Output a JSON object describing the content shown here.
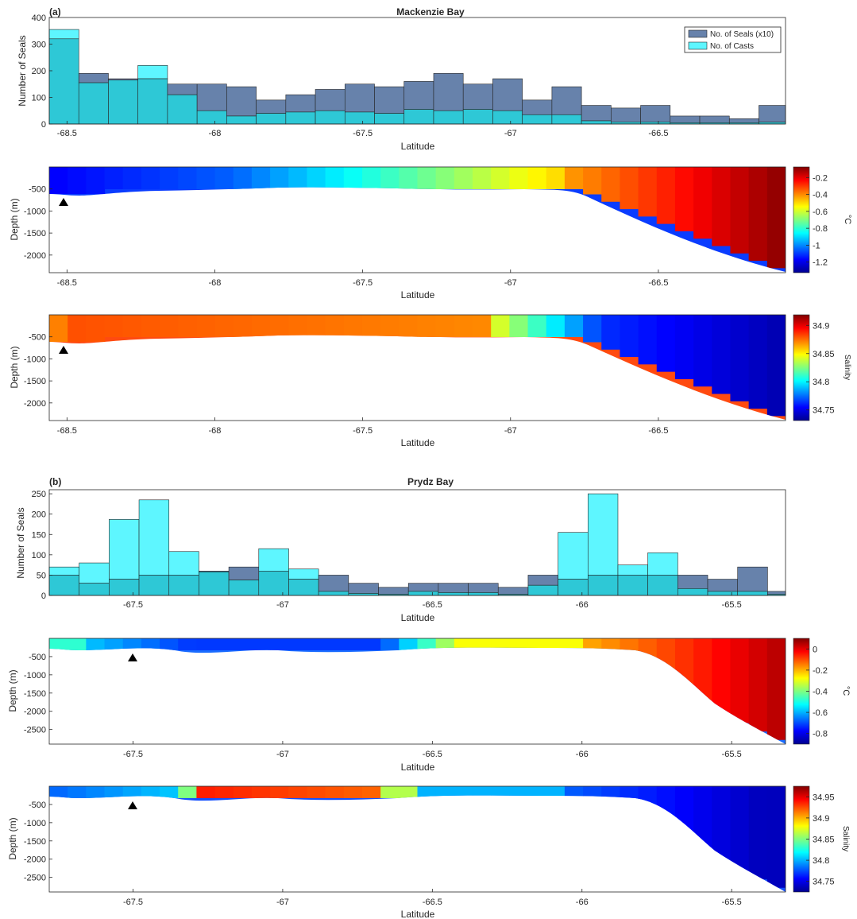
{
  "panels": [
    {
      "label": "(a)",
      "title": "Mackenzie Bay",
      "histogram": {
        "ylabel": "Number of Seals",
        "xlabel": "Latitude",
        "xlim": [
          -68.56,
          -66.07
        ],
        "ylim": [
          0,
          400
        ],
        "xticks": [
          -68.5,
          -68,
          -67.5,
          -67,
          -66.5
        ],
        "yticks": [
          0,
          100,
          200,
          300,
          400
        ],
        "legend": [
          "No. of Seals (x10)",
          "No. of Casts"
        ],
        "bin_edges": [
          -68.56,
          -68.46,
          -68.36,
          -68.26,
          -68.16,
          -68.06,
          -67.96,
          -67.86,
          -67.76,
          -67.66,
          -67.56,
          -67.46,
          -67.36,
          -67.26,
          -67.16,
          -67.06,
          -66.96,
          -66.86,
          -66.76,
          -66.66,
          -66.56,
          -66.46,
          -66.36,
          -66.26,
          -66.16,
          -66.07
        ],
        "seals_x10": [
          320,
          190,
          170,
          170,
          150,
          150,
          140,
          90,
          110,
          130,
          150,
          140,
          160,
          190,
          150,
          170,
          90,
          140,
          70,
          60,
          70,
          30,
          30,
          20,
          70
        ],
        "casts": [
          355,
          155,
          165,
          220,
          110,
          50,
          30,
          40,
          45,
          50,
          45,
          40,
          55,
          50,
          55,
          50,
          35,
          35,
          12,
          8,
          8,
          5,
          5,
          5,
          7
        ]
      },
      "temperature": {
        "ylabel": "Depth (m)",
        "xlabel": "Latitude",
        "cbar_label": "°C",
        "cbar_ticks": [
          "-0.2",
          "-0.4",
          "-0.6",
          "-0.8",
          "-1",
          "-1.2"
        ],
        "yticks": [
          -500,
          -1000,
          -1500,
          -2000
        ],
        "xticks": [
          -68.5,
          -68,
          -67.5,
          -67,
          -66.5
        ],
        "marker_lat": -68.5
      },
      "salinity": {
        "ylabel": "Depth (m)",
        "xlabel": "Latitude",
        "cbar_label": "Salinity",
        "cbar_ticks": [
          "34.9",
          "34.85",
          "34.8",
          "34.75"
        ],
        "yticks": [
          -500,
          -1000,
          -1500,
          -2000
        ],
        "xticks": [
          -68.5,
          -68,
          -67.5,
          -67,
          -66.5
        ],
        "marker_lat": -68.5
      }
    },
    {
      "label": "(b)",
      "title": "Prydz Bay",
      "histogram": {
        "ylabel": "Number of Seals",
        "xlabel": "Latitude",
        "xlim": [
          -67.78,
          -65.32
        ],
        "ylim": [
          0,
          260
        ],
        "xticks": [
          -67.5,
          -67,
          -66.5,
          -66,
          -65.5
        ],
        "yticks": [
          0,
          50,
          100,
          150,
          200,
          250
        ],
        "bin_edges": [
          -67.78,
          -67.68,
          -67.58,
          -67.48,
          -67.38,
          -67.28,
          -67.18,
          -67.08,
          -66.98,
          -66.88,
          -66.78,
          -66.68,
          -66.58,
          -66.48,
          -66.38,
          -66.28,
          -66.18,
          -66.08,
          -65.98,
          -65.88,
          -65.78,
          -65.68,
          -65.58,
          -65.48,
          -65.38,
          -65.32
        ],
        "seals_x10": [
          50,
          30,
          40,
          50,
          50,
          60,
          70,
          60,
          40,
          50,
          30,
          20,
          30,
          30,
          30,
          20,
          50,
          40,
          50,
          50,
          50,
          50,
          40,
          70,
          10
        ],
        "casts": [
          70,
          80,
          187,
          235,
          108,
          58,
          38,
          115,
          65,
          10,
          5,
          3,
          10,
          7,
          7,
          3,
          25,
          155,
          250,
          75,
          105,
          17,
          10,
          10,
          3
        ]
      },
      "temperature": {
        "ylabel": "Depth (m)",
        "xlabel": "Latitude",
        "cbar_label": "°C",
        "cbar_ticks": [
          "0",
          "-0.2",
          "-0.4",
          "-0.6",
          "-0.8"
        ],
        "yticks": [
          -500,
          -1000,
          -1500,
          -2000,
          -2500
        ],
        "xticks": [
          -67.5,
          -67,
          -66.5,
          -66,
          -65.5
        ],
        "marker_lat": -67.5
      },
      "salinity": {
        "ylabel": "Depth (m)",
        "xlabel": "Latitude",
        "cbar_label": "Salinity",
        "cbar_ticks": [
          "34.95",
          "34.9",
          "34.85",
          "34.8",
          "34.75"
        ],
        "yticks": [
          -500,
          -1000,
          -1500,
          -2000,
          -2500
        ],
        "xticks": [
          -67.5,
          -67,
          -66.5,
          -66,
          -65.5
        ],
        "marker_lat": -67.5
      }
    }
  ],
  "colors": {
    "seals": "#6782ab",
    "casts": "#5ef6ff",
    "overlap": "#2ec8d6",
    "axis": "#262626"
  },
  "chart_data": [
    {
      "type": "bar",
      "title": "Mackenzie Bay",
      "xlabel": "Latitude",
      "ylabel": "Number of Seals",
      "ylim": [
        0,
        400
      ],
      "x": [
        -68.51,
        -68.41,
        -68.31,
        -68.21,
        -68.11,
        -68.01,
        -67.91,
        -67.81,
        -67.71,
        -67.61,
        -67.51,
        -67.41,
        -67.31,
        -67.21,
        -67.11,
        -67.01,
        -66.91,
        -66.81,
        -66.71,
        -66.61,
        -66.51,
        -66.41,
        -66.31,
        -66.21,
        -66.12
      ],
      "series": [
        {
          "name": "No. of Seals (x10)",
          "values": [
            320,
            190,
            170,
            170,
            150,
            150,
            140,
            90,
            110,
            130,
            150,
            140,
            160,
            190,
            150,
            170,
            90,
            140,
            70,
            60,
            70,
            30,
            30,
            20,
            70
          ]
        },
        {
          "name": "No. of Casts",
          "values": [
            355,
            155,
            165,
            220,
            110,
            50,
            30,
            40,
            45,
            50,
            45,
            40,
            55,
            50,
            55,
            50,
            35,
            35,
            12,
            8,
            8,
            5,
            5,
            5,
            7
          ]
        }
      ],
      "legend": "top-right"
    },
    {
      "type": "heatmap",
      "xlabel": "Latitude",
      "ylabel": "Depth (m)",
      "colorbar": "°C",
      "clim": [
        -1.25,
        -0.1
      ],
      "ylim": [
        -2400,
        0
      ]
    },
    {
      "type": "heatmap",
      "xlabel": "Latitude",
      "ylabel": "Depth (m)",
      "colorbar": "Salinity",
      "clim": [
        34.72,
        34.94
      ],
      "ylim": [
        -2400,
        0
      ]
    },
    {
      "type": "bar",
      "title": "Prydz Bay",
      "xlabel": "Latitude",
      "ylabel": "Number of Seals",
      "ylim": [
        0,
        260
      ],
      "x": [
        -67.73,
        -67.63,
        -67.53,
        -67.43,
        -67.33,
        -67.23,
        -67.13,
        -67.03,
        -66.93,
        -66.83,
        -66.73,
        -66.63,
        -66.53,
        -66.43,
        -66.33,
        -66.23,
        -66.13,
        -66.03,
        -65.93,
        -65.83,
        -65.73,
        -65.63,
        -65.53,
        -65.43,
        -65.35
      ],
      "series": [
        {
          "name": "No. of Seals (x10)",
          "values": [
            50,
            30,
            40,
            50,
            50,
            60,
            70,
            60,
            40,
            50,
            30,
            20,
            30,
            30,
            30,
            20,
            50,
            40,
            50,
            50,
            50,
            50,
            40,
            70,
            10
          ]
        },
        {
          "name": "No. of Casts",
          "values": [
            70,
            80,
            187,
            235,
            108,
            58,
            38,
            115,
            65,
            10,
            5,
            3,
            10,
            7,
            7,
            3,
            25,
            155,
            250,
            75,
            105,
            17,
            10,
            10,
            3
          ]
        }
      ]
    },
    {
      "type": "heatmap",
      "xlabel": "Latitude",
      "ylabel": "Depth (m)",
      "colorbar": "°C",
      "clim": [
        -0.98,
        0.07
      ],
      "ylim": [
        -2900,
        0
      ]
    },
    {
      "type": "heatmap",
      "xlabel": "Latitude",
      "ylabel": "Depth (m)",
      "colorbar": "Salinity",
      "clim": [
        34.72,
        34.97
      ],
      "ylim": [
        -2900,
        0
      ]
    }
  ]
}
